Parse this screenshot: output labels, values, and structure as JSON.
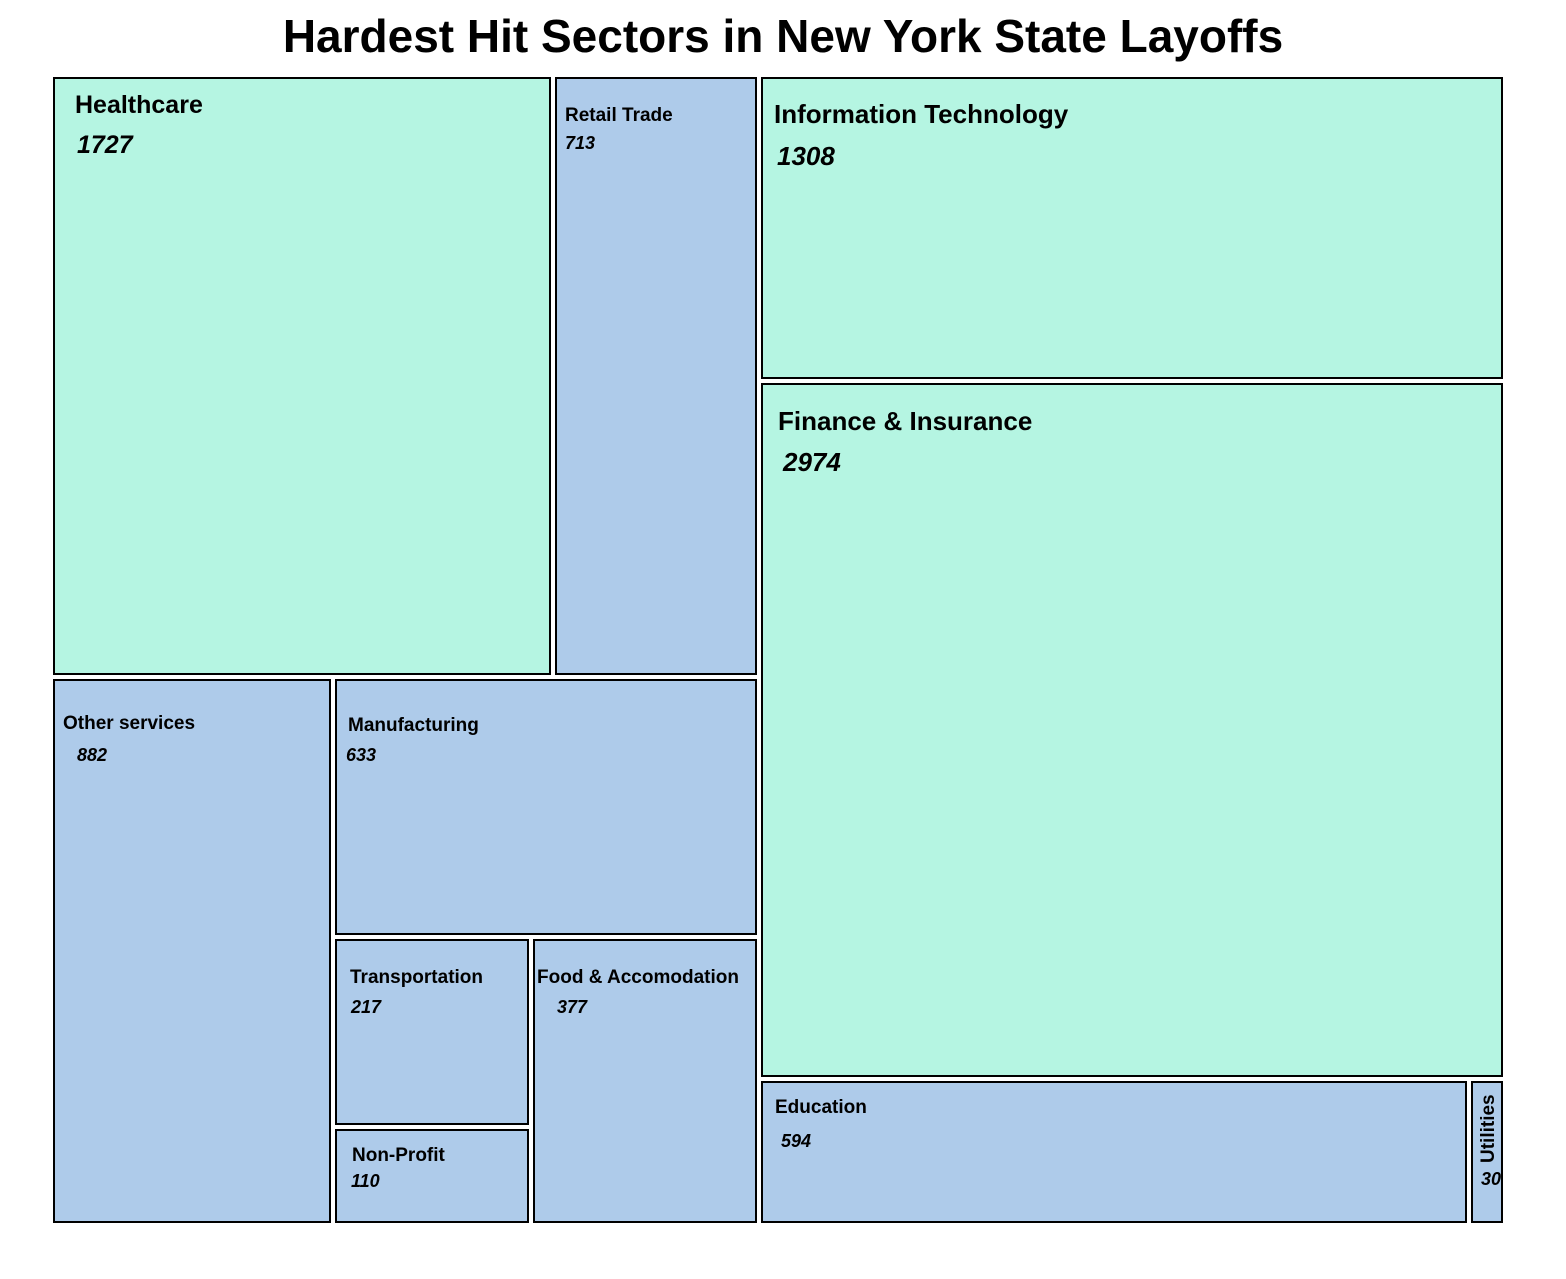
{
  "chart_data": {
    "type": "treemap",
    "title": "Hardest Hit Sectors in New York State Layoffs",
    "colors": {
      "large": "#b5f5e2",
      "small": "#aecbea",
      "border": "#000000"
    },
    "items": [
      {
        "name": "Finance & Insurance",
        "value": 2974,
        "color_group": "large"
      },
      {
        "name": "Healthcare",
        "value": 1727,
        "color_group": "large"
      },
      {
        "name": "Information Technology",
        "value": 1308,
        "color_group": "large"
      },
      {
        "name": "Other services",
        "value": 882,
        "color_group": "small"
      },
      {
        "name": "Retail Trade",
        "value": 713,
        "color_group": "small"
      },
      {
        "name": "Manufacturing",
        "value": 633,
        "color_group": "small"
      },
      {
        "name": "Education",
        "value": 594,
        "color_group": "small"
      },
      {
        "name": "Food & Accomodation",
        "value": 377,
        "color_group": "small"
      },
      {
        "name": "Transportation",
        "value": 217,
        "color_group": "small"
      },
      {
        "name": "Non-Profit",
        "value": 110,
        "color_group": "small"
      },
      {
        "name": "Utilities",
        "value": 30,
        "color_group": "small"
      }
    ]
  }
}
